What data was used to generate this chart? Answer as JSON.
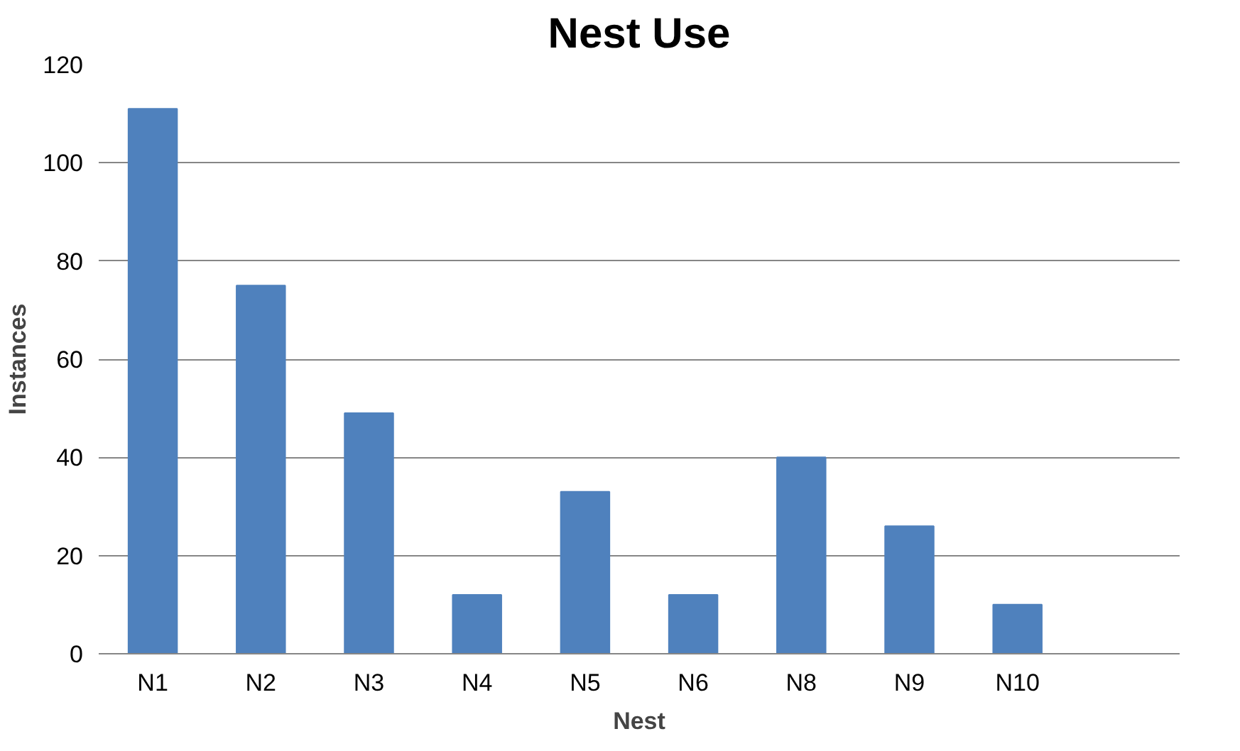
{
  "chart_data": {
    "type": "bar",
    "title": "Nest Use",
    "xlabel": "Nest",
    "ylabel": "Instances",
    "categories": [
      "N1",
      "N2",
      "N3",
      "N4",
      "N5",
      "N6",
      "N8",
      "N9",
      "N10",
      null
    ],
    "values": [
      111,
      75,
      49,
      12,
      33,
      12,
      40,
      26,
      10,
      null
    ],
    "color": "#4f81bd",
    "ylim": [
      0,
      120
    ],
    "yticks": [
      0,
      20,
      40,
      60,
      80,
      100,
      120
    ],
    "grid": "y"
  }
}
